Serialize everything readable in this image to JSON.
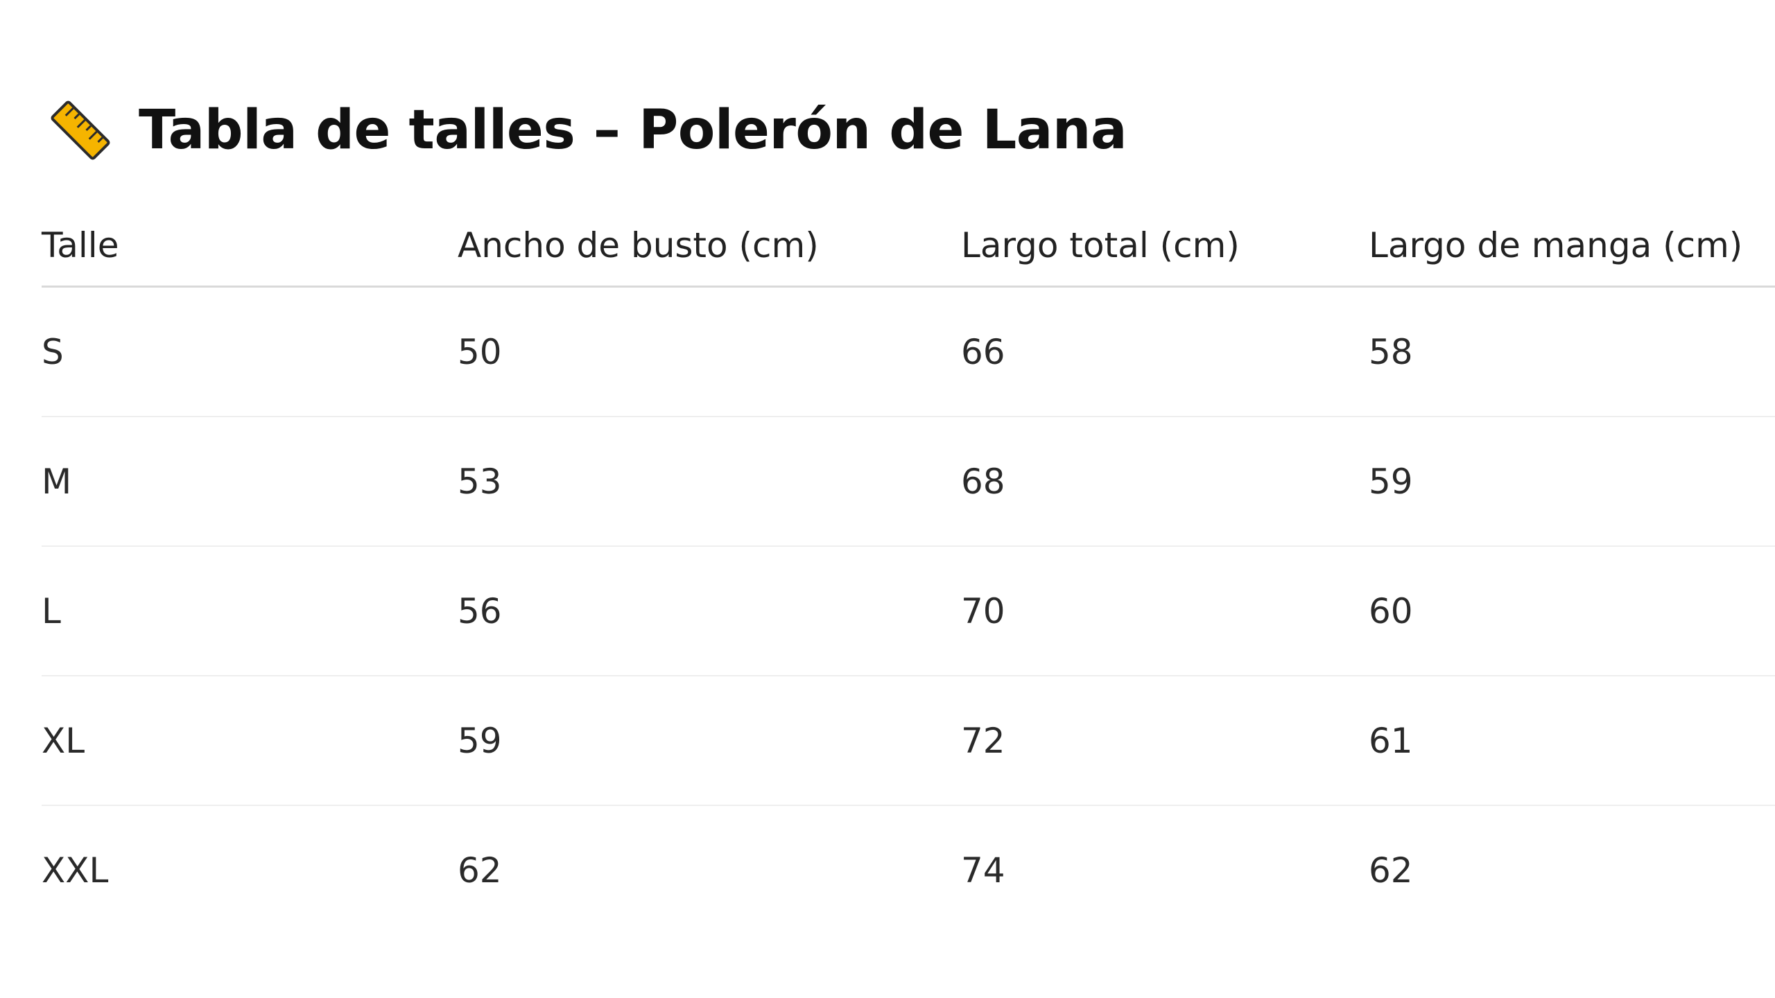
{
  "title": "Tabla de talles – Polerón de Lana",
  "title_icon": "ruler-icon",
  "table": {
    "headers": [
      "Talle",
      "Ancho de busto (cm)",
      "Largo total (cm)",
      "Largo de manga (cm)"
    ],
    "rows": [
      [
        "S",
        "50",
        "66",
        "58"
      ],
      [
        "M",
        "53",
        "68",
        "59"
      ],
      [
        "L",
        "56",
        "70",
        "60"
      ],
      [
        "XL",
        "59",
        "72",
        "61"
      ],
      [
        "XXL",
        "62",
        "74",
        "62"
      ]
    ]
  },
  "colors": {
    "ruler": "#F5B400",
    "text": "#1a1a1a",
    "header_rule": "#d9d9d9",
    "row_rule": "#eeeeee"
  }
}
